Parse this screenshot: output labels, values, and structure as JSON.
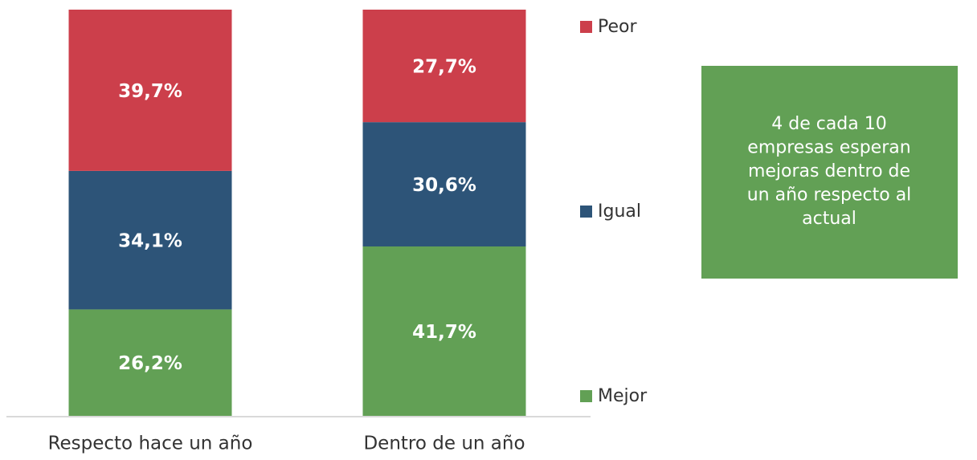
{
  "chart_data": {
    "type": "stacked_bar",
    "categories": [
      "Respecto hace un año",
      "Dentro de un año"
    ],
    "series": [
      {
        "name": "Mejor",
        "color": "#62a055",
        "values": [
          26.2,
          41.7
        ],
        "value_labels": [
          "26,2%",
          "41,7%"
        ]
      },
      {
        "name": "Igual",
        "color": "#2d5478",
        "values": [
          34.1,
          30.6
        ],
        "value_labels": [
          "34,1%",
          "30,6%"
        ]
      },
      {
        "name": "Peor",
        "color": "#cc3f4b",
        "values": [
          39.7,
          27.7
        ],
        "value_labels": [
          "39,7%",
          "27,7%"
        ]
      }
    ],
    "ylim": [
      0,
      100
    ],
    "annotation": [
      "4 de cada 10",
      "empresas esperan",
      "mejoras dentro de",
      "un año respecto al",
      "actual"
    ]
  }
}
